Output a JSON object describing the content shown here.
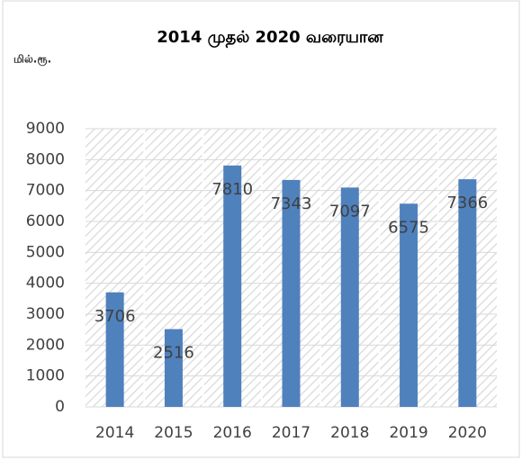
{
  "chart_data": {
    "type": "bar",
    "title": "2014 முதல் 2020 வரையான",
    "ylabel": "மில்.ரூ.",
    "categories": [
      "2014",
      "2015",
      "2016",
      "2017",
      "2018",
      "2019",
      "2020"
    ],
    "values": [
      3706,
      2516,
      7810,
      7343,
      7097,
      6575,
      7366
    ],
    "color": "#4f81bd",
    "ylim": [
      0,
      9000
    ],
    "yticks": [
      0,
      1000,
      2000,
      3000,
      4000,
      5000,
      6000,
      7000,
      8000,
      9000
    ],
    "grid": true
  }
}
